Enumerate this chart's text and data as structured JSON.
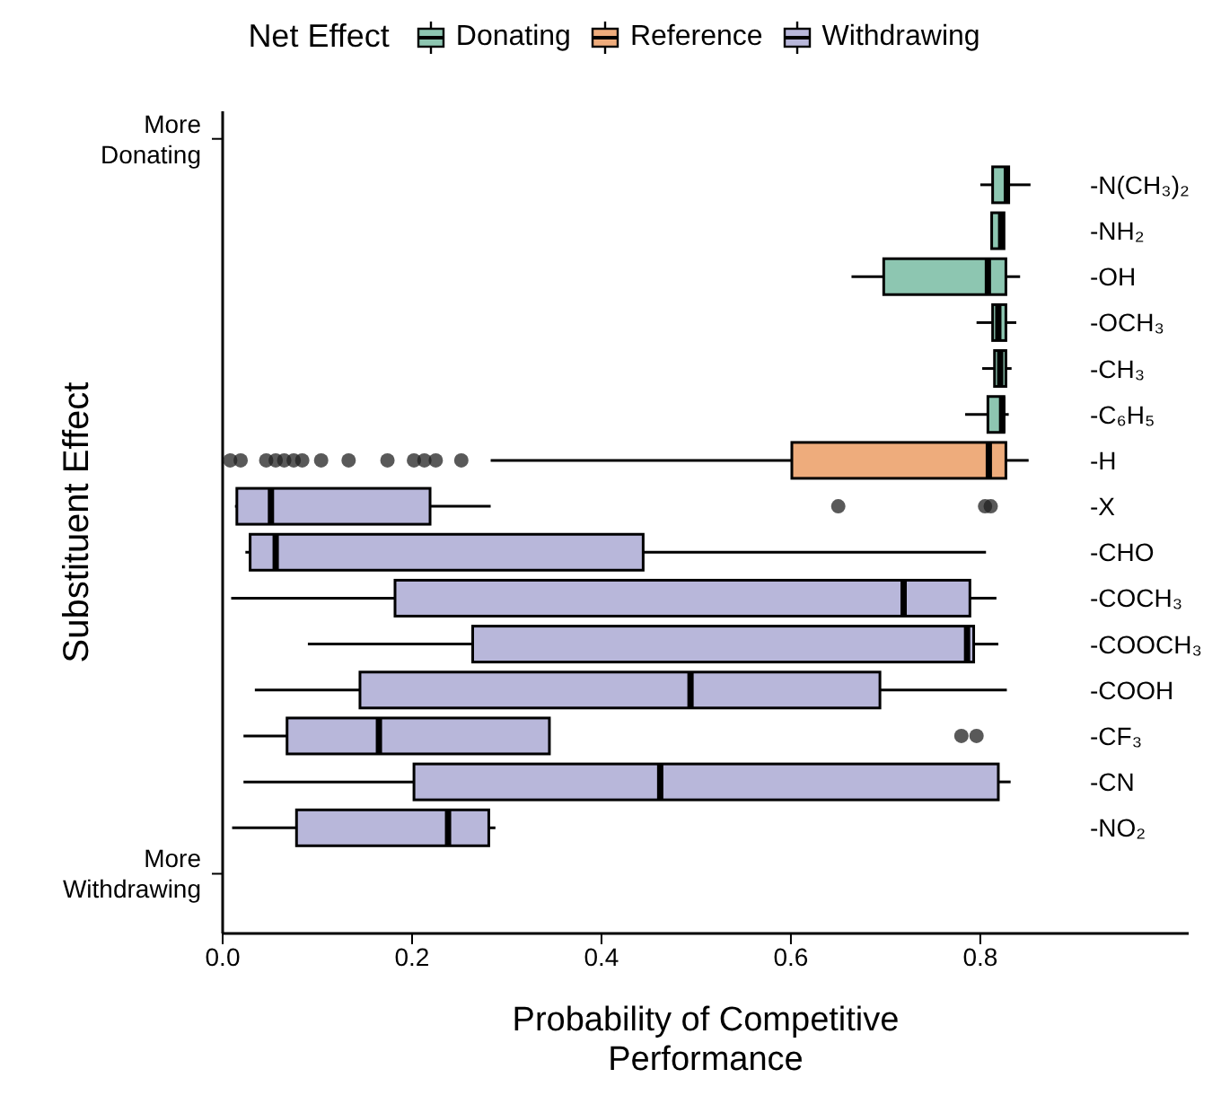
{
  "chart_data": {
    "type": "box",
    "orientation": "horizontal",
    "legend_title": "Net Effect",
    "legend": "top",
    "xlabel": "Probability of Competitive Performance",
    "ylabel": "Substituent Effect",
    "annotations": [
      "More Donating",
      "More Withdrawing"
    ],
    "categories": [
      "-N(CH₃)₂",
      "-NH₂",
      "-OH",
      "-OCH₃",
      "-CH₃",
      "-C₆H₅",
      "-H",
      "-X",
      "-CHO",
      "-COCH₃",
      "-COOCH₃",
      "-COOH",
      "-CF₃",
      "-CN",
      "-NO₂"
    ],
    "xlim": [
      0,
      1.02
    ],
    "xticks": [
      {
        "value": 0,
        "label": "0.0"
      },
      0.2,
      0.4,
      0.6,
      0.8
    ],
    "series": [
      {
        "name": "Donating",
        "color": "#8dc6b1",
        "boxes": [
          {
            "low": 0.8,
            "q1": 0.813,
            "median": 0.828,
            "q3": 0.83,
            "high": 0.853
          },
          {
            "low": 0.812,
            "q1": 0.812,
            "median": 0.822,
            "q3": 0.825,
            "high": 0.825
          },
          {
            "low": 0.664,
            "q1": 0.698,
            "median": 0.808,
            "q3": 0.827,
            "high": 0.842
          },
          {
            "low": 0.796,
            "q1": 0.813,
            "median": 0.819,
            "q3": 0.827,
            "high": 0.838
          },
          {
            "low": 0.802,
            "q1": 0.815,
            "median": 0.821,
            "q3": 0.827,
            "high": 0.833
          },
          {
            "low": 0.784,
            "q1": 0.808,
            "median": 0.823,
            "q3": 0.825,
            "high": 0.83
          },
          null,
          null,
          null,
          null,
          null,
          null,
          null,
          null,
          null
        ]
      },
      {
        "name": "Reference",
        "color": "#eeac7c",
        "boxes": [
          null,
          null,
          null,
          null,
          null,
          null,
          {
            "low": 0.283,
            "q1": 0.601,
            "median": 0.809,
            "q3": 0.827,
            "high": 0.851,
            "outliers": [
              0.008,
              0.019,
              0.046,
              0.056,
              0.065,
              0.075,
              0.084,
              0.104,
              0.133,
              0.174,
              0.202,
              0.213,
              0.225,
              0.252
            ]
          },
          null,
          null,
          null,
          null,
          null,
          null,
          null,
          null
        ]
      },
      {
        "name": "Withdrawing",
        "color": "#b8b7da",
        "boxes": [
          null,
          null,
          null,
          null,
          null,
          null,
          null,
          {
            "low": 0.013,
            "q1": 0.015,
            "median": 0.051,
            "q3": 0.219,
            "high": 0.283,
            "outliers": [
              0.65,
              0.805,
              0.811
            ]
          },
          {
            "low": 0.024,
            "q1": 0.029,
            "median": 0.056,
            "q3": 0.444,
            "high": 0.806
          },
          {
            "low": 0.009,
            "q1": 0.182,
            "median": 0.719,
            "q3": 0.789,
            "high": 0.817
          },
          {
            "low": 0.09,
            "q1": 0.264,
            "median": 0.786,
            "q3": 0.793,
            "high": 0.819
          },
          {
            "low": 0.034,
            "q1": 0.145,
            "median": 0.494,
            "q3": 0.694,
            "high": 0.828
          },
          {
            "low": 0.022,
            "q1": 0.068,
            "median": 0.165,
            "q3": 0.345,
            "high": 0.345,
            "outliers": [
              0.78,
              0.796
            ]
          },
          {
            "low": 0.022,
            "q1": 0.202,
            "median": 0.462,
            "q3": 0.819,
            "high": 0.832
          },
          {
            "low": 0.01,
            "q1": 0.078,
            "median": 0.238,
            "q3": 0.281,
            "high": 0.288
          }
        ]
      }
    ]
  }
}
